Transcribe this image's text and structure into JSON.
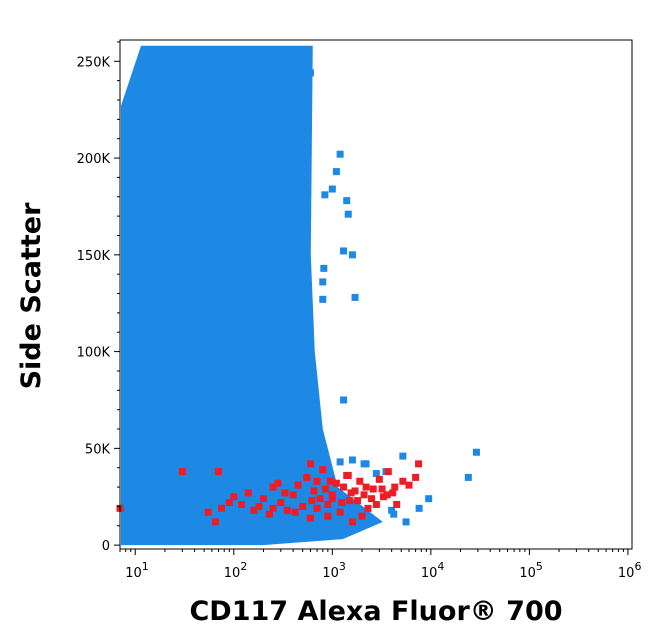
{
  "chart_data": {
    "type": "scatter",
    "title": "",
    "xlabel": "CD117 Alexa Fluor® 700",
    "ylabel": "Side Scatter",
    "x_scale": "log",
    "xlim": [
      7,
      1100000
    ],
    "ylim": [
      -2000,
      261000
    ],
    "grid": false,
    "legend": "none",
    "x_ticks": [
      {
        "value": 10,
        "base": "10",
        "exp": "1"
      },
      {
        "value": 100,
        "base": "10",
        "exp": "2"
      },
      {
        "value": 1000,
        "base": "10",
        "exp": "3"
      },
      {
        "value": 10000,
        "base": "10",
        "exp": "4"
      },
      {
        "value": 100000,
        "base": "10",
        "exp": "5"
      },
      {
        "value": 1000000,
        "base": "10",
        "exp": "6"
      }
    ],
    "y_ticks": [
      {
        "value": 0,
        "label": "0"
      },
      {
        "value": 50000,
        "label": "50K"
      },
      {
        "value": 100000,
        "label": "100K"
      },
      {
        "value": 150000,
        "label": "150K"
      },
      {
        "value": 200000,
        "label": "200K"
      },
      {
        "value": 250000,
        "label": "250K"
      }
    ],
    "series": [
      {
        "color": "#1E88E5",
        "points": [
          [
            2200,
            42000
          ],
          [
            1600,
            44000
          ],
          [
            24000,
            35000
          ],
          [
            29000,
            48000
          ],
          [
            5200,
            46000
          ],
          [
            9500,
            24000
          ],
          [
            7600,
            19000
          ],
          [
            4200,
            16000
          ],
          [
            1300,
            152000
          ],
          [
            1450,
            171000
          ],
          [
            1400,
            178000
          ],
          [
            1200,
            202000
          ],
          [
            1600,
            150000
          ],
          [
            1700,
            128000
          ],
          [
            1100,
            193000
          ],
          [
            1000,
            184000
          ],
          [
            2800,
            37000
          ],
          [
            3500,
            38000
          ],
          [
            1200,
            43000
          ],
          [
            900,
            37000
          ],
          [
            800,
            136000
          ],
          [
            820,
            143000
          ],
          [
            840,
            181000
          ],
          [
            600,
            244000
          ],
          [
            450,
            240000
          ],
          [
            1300,
            75000
          ],
          [
            800,
            127000
          ],
          [
            2100,
            42000
          ],
          [
            5600,
            12000
          ],
          [
            4000,
            18000
          ]
        ],
        "dense_region": {
          "x_range": [
            7,
            800
          ],
          "y_range": [
            0,
            258000
          ]
        }
      },
      {
        "color": "#EE1C25",
        "points": [
          [
            7,
            19000
          ],
          [
            30,
            38000
          ],
          [
            70,
            38000
          ],
          [
            55,
            17000
          ],
          [
            65,
            12000
          ],
          [
            75,
            19000
          ],
          [
            90,
            22000
          ],
          [
            100,
            25000
          ],
          [
            120,
            21000
          ],
          [
            140,
            27000
          ],
          [
            160,
            18000
          ],
          [
            180,
            20000
          ],
          [
            200,
            24000
          ],
          [
            250,
            30000
          ],
          [
            300,
            22000
          ],
          [
            350,
            18000
          ],
          [
            400,
            26000
          ],
          [
            450,
            31000
          ],
          [
            500,
            20000
          ],
          [
            550,
            35000
          ],
          [
            600,
            42000
          ],
          [
            650,
            28000
          ],
          [
            700,
            33000
          ],
          [
            750,
            24000
          ],
          [
            800,
            39000
          ],
          [
            850,
            29000
          ],
          [
            900,
            21000
          ],
          [
            1000,
            26000
          ],
          [
            1100,
            32000
          ],
          [
            1200,
            17000
          ],
          [
            1300,
            30000
          ],
          [
            1400,
            36000
          ],
          [
            1500,
            23000
          ],
          [
            1700,
            28000
          ],
          [
            1900,
            33000
          ],
          [
            2100,
            26000
          ],
          [
            2300,
            19000
          ],
          [
            2600,
            29000
          ],
          [
            3000,
            34000
          ],
          [
            3300,
            25000
          ],
          [
            3700,
            38000
          ],
          [
            4100,
            27000
          ],
          [
            4500,
            21000
          ],
          [
            5200,
            33000
          ],
          [
            6000,
            31000
          ],
          [
            7000,
            35000
          ],
          [
            7500,
            42000
          ],
          [
            2000,
            15000
          ],
          [
            1600,
            12000
          ],
          [
            900,
            15000
          ],
          [
            600,
            14000
          ],
          [
            420,
            17000
          ],
          [
            330,
            27000
          ],
          [
            280,
            32000
          ],
          [
            230,
            16000
          ],
          [
            250,
            19000
          ],
          [
            700,
            19000
          ],
          [
            1000,
            24000
          ],
          [
            1250,
            22000
          ],
          [
            1550,
            27000
          ],
          [
            1800,
            23000
          ],
          [
            2200,
            30000
          ],
          [
            2500,
            24000
          ],
          [
            2800,
            21000
          ],
          [
            3200,
            29000
          ],
          [
            3600,
            26000
          ],
          [
            4300,
            30000
          ],
          [
            1450,
            36000
          ],
          [
            950,
            33000
          ],
          [
            620,
            23000
          ]
        ]
      }
    ]
  }
}
